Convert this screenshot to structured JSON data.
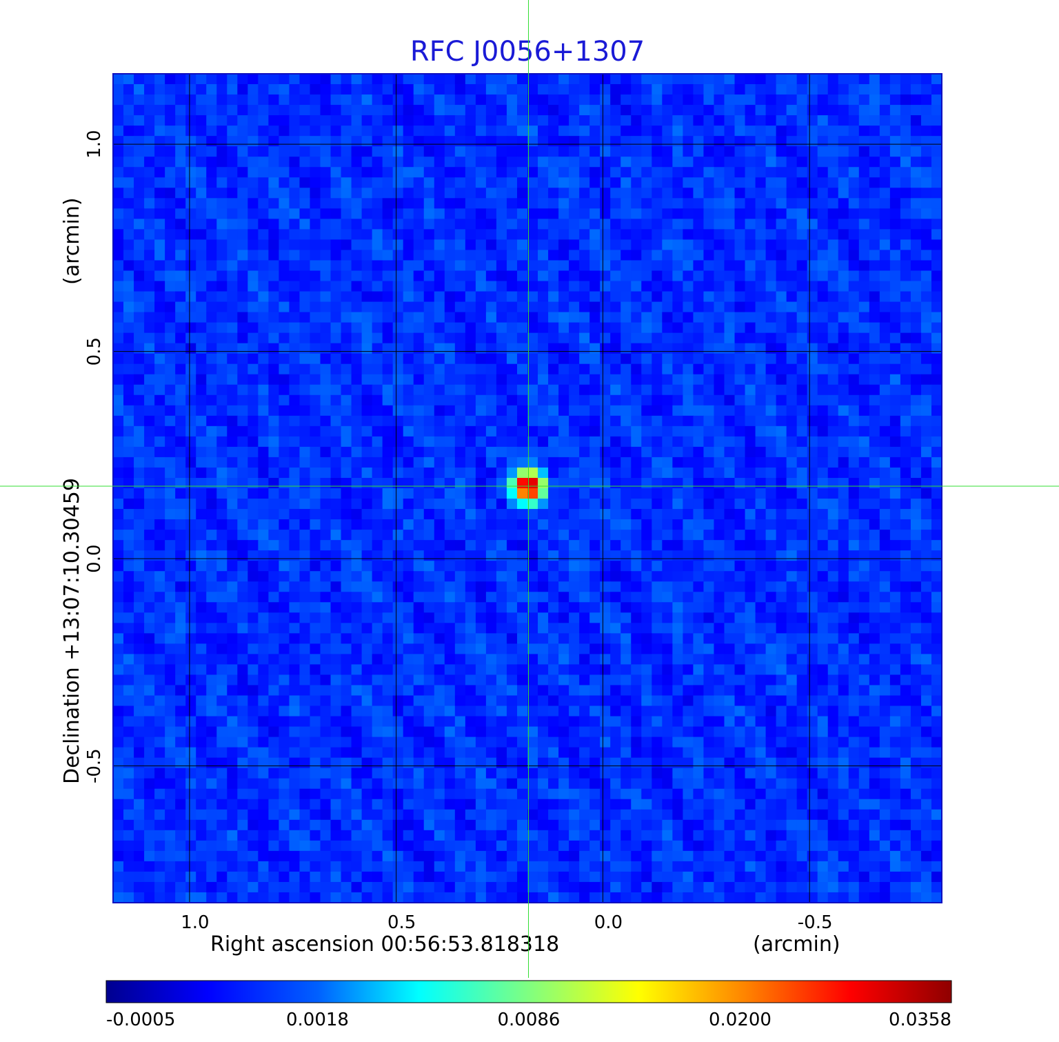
{
  "chart_data": {
    "type": "heatmap",
    "title": "RFC J0056+1307",
    "xlabel": "Right ascension  00:56:53.818318",
    "xunit": "(arcmin)",
    "ylabel": "Declination  +13:07:10.30459",
    "yunit": "(arcmin)",
    "xlim": [
      1.185,
      -0.82
    ],
    "ylim": [
      -0.83,
      1.17
    ],
    "x_ticks": [
      1.0,
      0.5,
      0.0,
      -0.5
    ],
    "x_tick_labels": [
      "1.0",
      "0.5",
      "0.0",
      "-0.5"
    ],
    "y_ticks": [
      1.0,
      0.5,
      0.0,
      -0.5
    ],
    "y_tick_labels": [
      "1.0",
      "0.5",
      "0.0",
      "-0.5"
    ],
    "grid": true,
    "colormap": "jet",
    "background_level": 0.0,
    "source": {
      "x": 0.18,
      "y": 0.175,
      "peak": 0.0358
    },
    "crosshair": {
      "x": 0.18,
      "y": 0.175,
      "color": "#33dd33"
    },
    "colorbar": {
      "placement": "bottom",
      "ticks": [
        -0.0005,
        0.0018,
        0.0086,
        0.02,
        0.0358
      ],
      "tick_labels": [
        "-0.0005",
        "0.0018",
        "0.0086",
        "0.0200",
        "0.0358"
      ]
    }
  }
}
